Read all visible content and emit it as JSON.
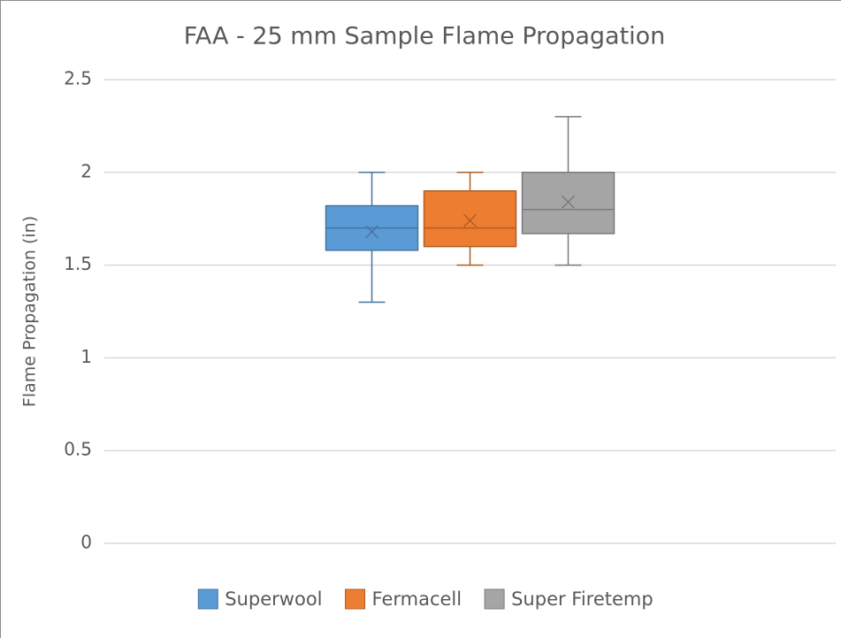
{
  "chart_data": {
    "type": "box",
    "title": "FAA - 25 mm Sample Flame Propagation",
    "ylabel": "Flame Propagation (in)",
    "ylim": [
      0,
      2.5
    ],
    "yticks": [
      0,
      0.5,
      1,
      1.5,
      2,
      2.5
    ],
    "grid": true,
    "legend": "bottom",
    "series": [
      {
        "name": "Superwool",
        "color": "#5b9bd5",
        "min": 1.3,
        "q1": 1.58,
        "median": 1.7,
        "q3": 1.82,
        "max": 2.0,
        "mean": 1.68
      },
      {
        "name": "Fermacell",
        "color": "#ed7d31",
        "min": 1.5,
        "q1": 1.6,
        "median": 1.7,
        "q3": 1.9,
        "max": 2.0,
        "mean": 1.74
      },
      {
        "name": "Super Firetemp",
        "color": "#a5a5a5",
        "min": 1.5,
        "q1": 1.67,
        "median": 1.8,
        "q3": 2.0,
        "max": 2.3,
        "mean": 1.84
      }
    ]
  }
}
